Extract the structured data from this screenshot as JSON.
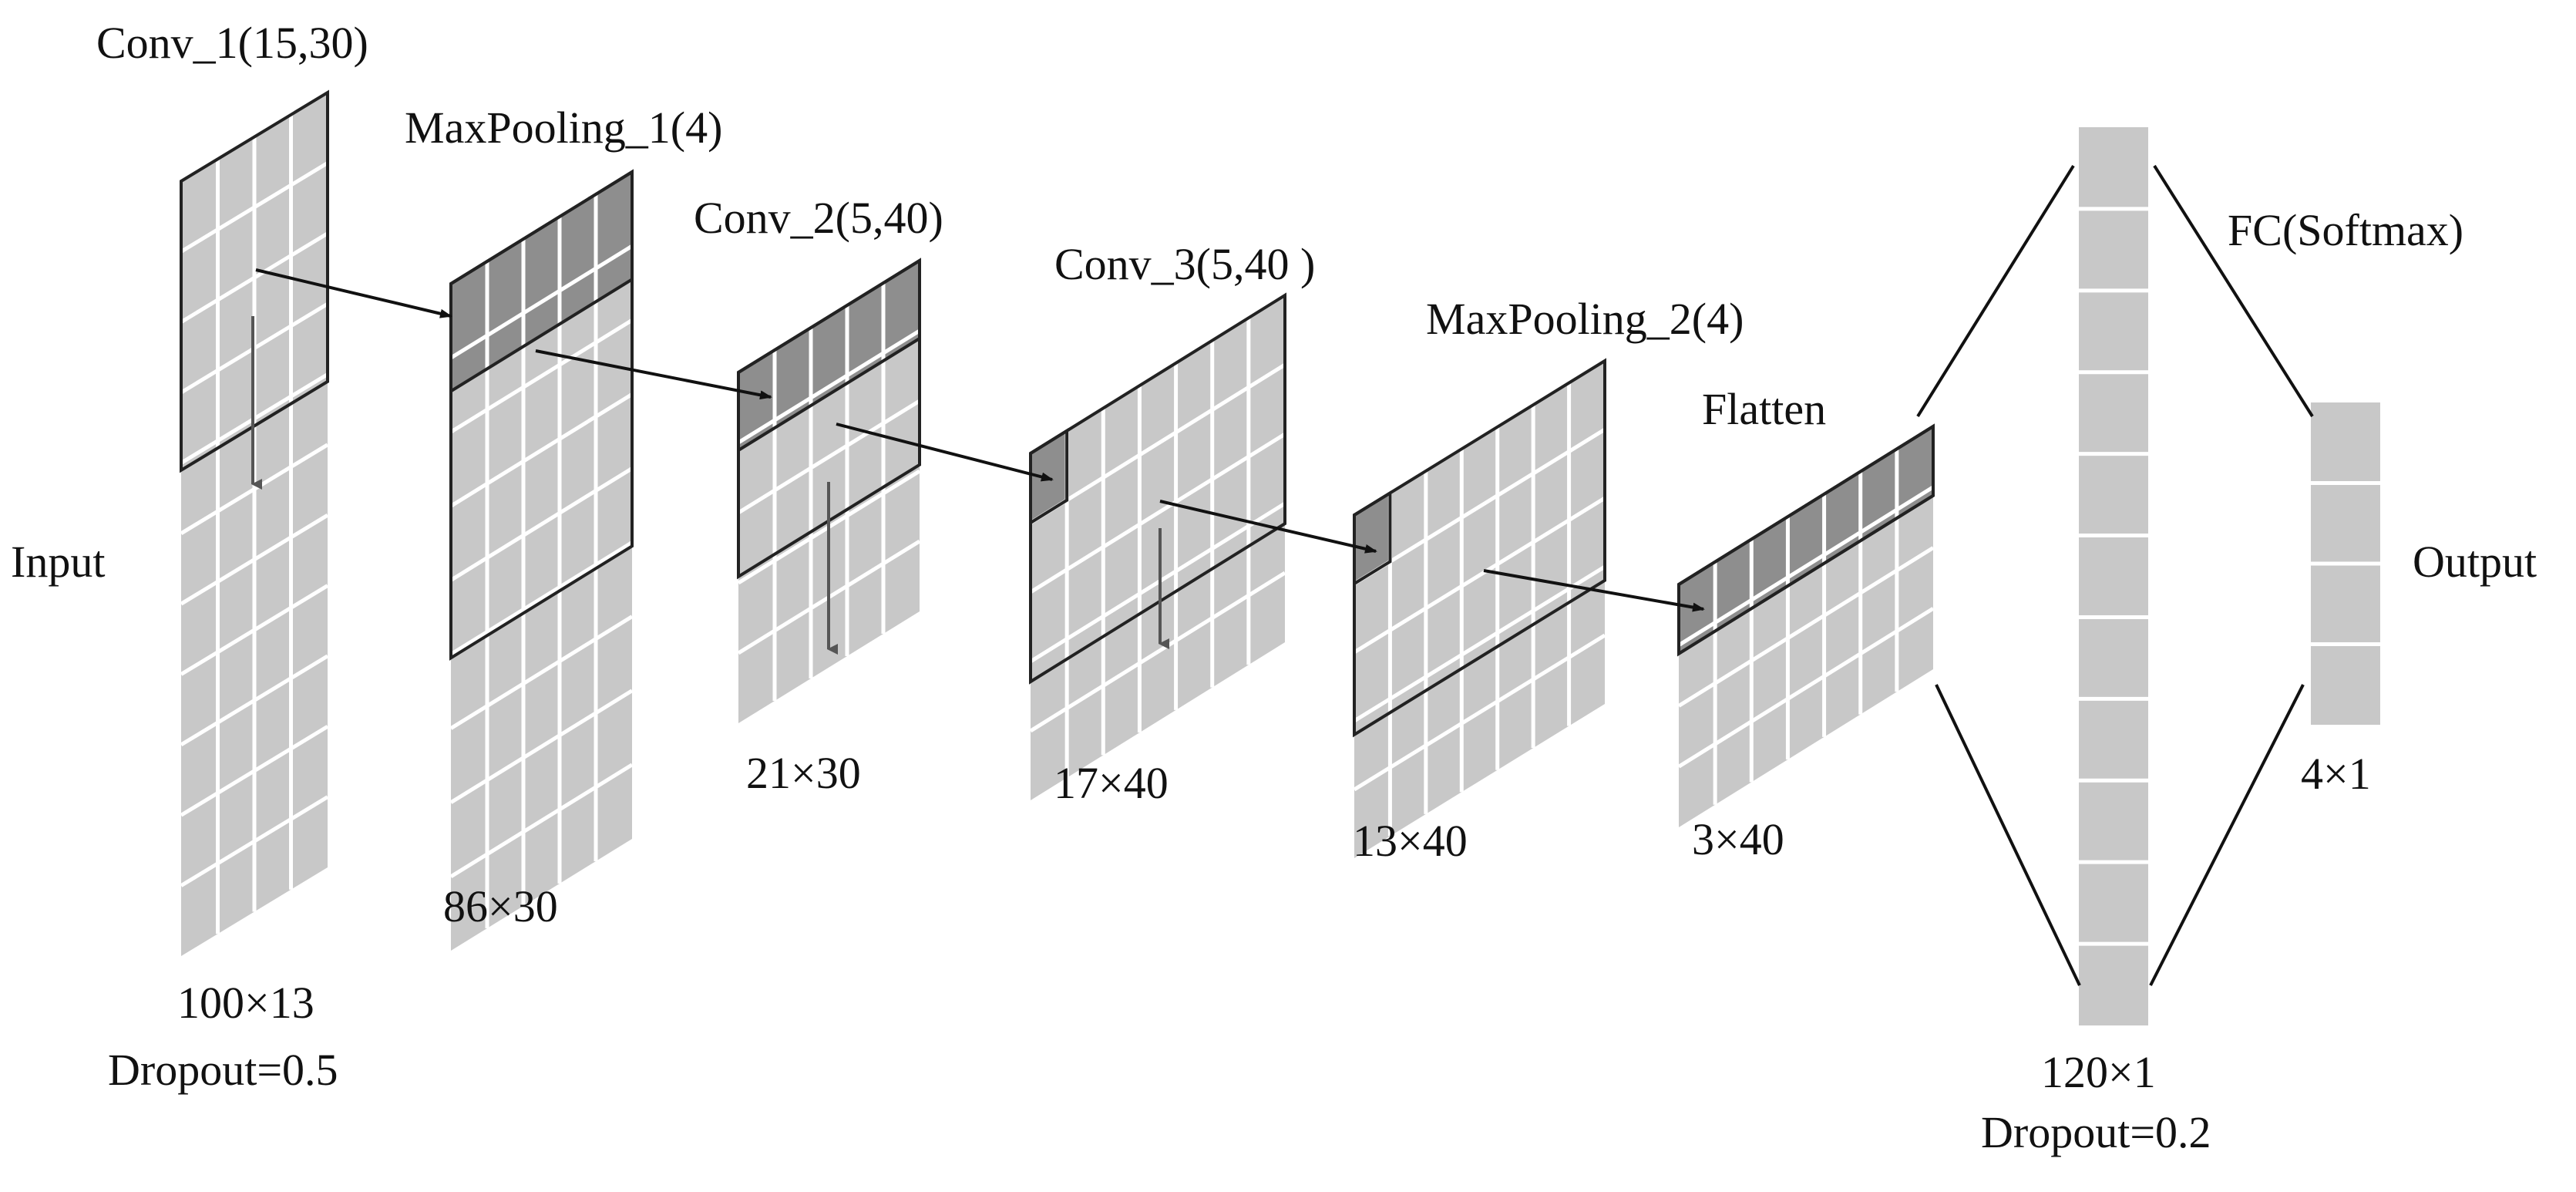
{
  "labels": {
    "input": "Input",
    "output": "Output",
    "conv1": "Conv_1(15,30)",
    "maxpool1": "MaxPooling_1(4)",
    "conv2": "Conv_2(5,40)",
    "conv3": "Conv_3(5,40 )",
    "maxpool2": "MaxPooling_2(4)",
    "flatten": "Flatten",
    "fc": "FC(Softmax)"
  },
  "dims": {
    "input": "100×13",
    "input_dropout": "Dropout=0.5",
    "maxpool1": "86×30",
    "conv2": "21×30",
    "conv3": "17×40",
    "maxpool2": "13×40",
    "flatten": "3×40",
    "dense": "120×1",
    "dense_dropout": "Dropout=0.2",
    "output": "4×1"
  },
  "colors": {
    "cell": "#c8c8c8",
    "cell_dark": "#8e8e8e",
    "frame": "#222222"
  }
}
